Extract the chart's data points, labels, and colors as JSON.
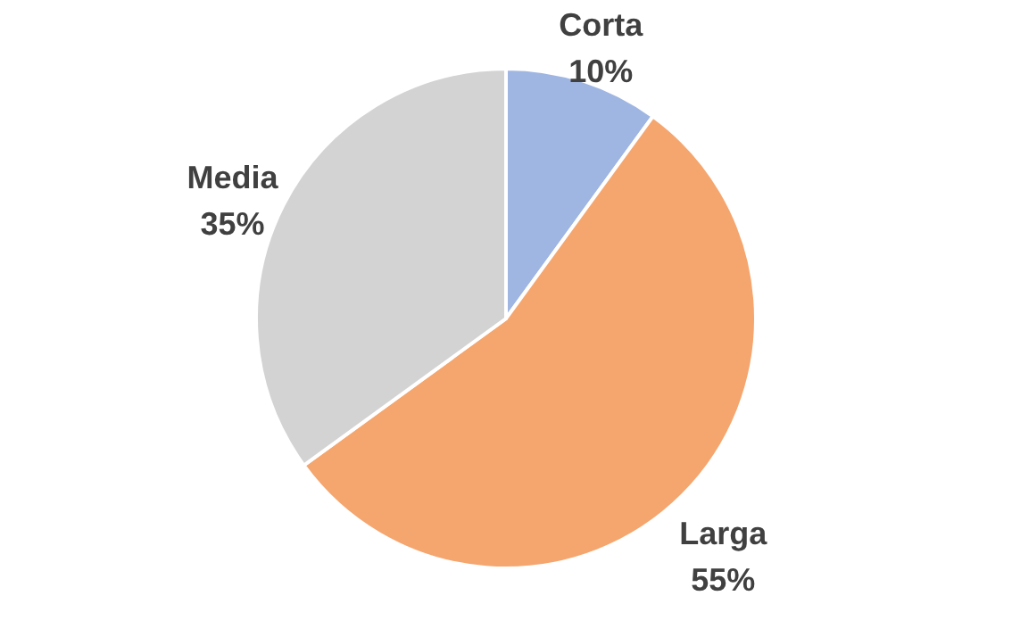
{
  "chart_data": {
    "type": "pie",
    "categories": [
      "Corta",
      "Larga",
      "Media"
    ],
    "values": [
      10,
      55,
      35
    ],
    "colors": [
      "#9fb6e2",
      "#f5a66f",
      "#d3d3d3"
    ],
    "value_labels": [
      "10%",
      "55%",
      "35%"
    ]
  }
}
